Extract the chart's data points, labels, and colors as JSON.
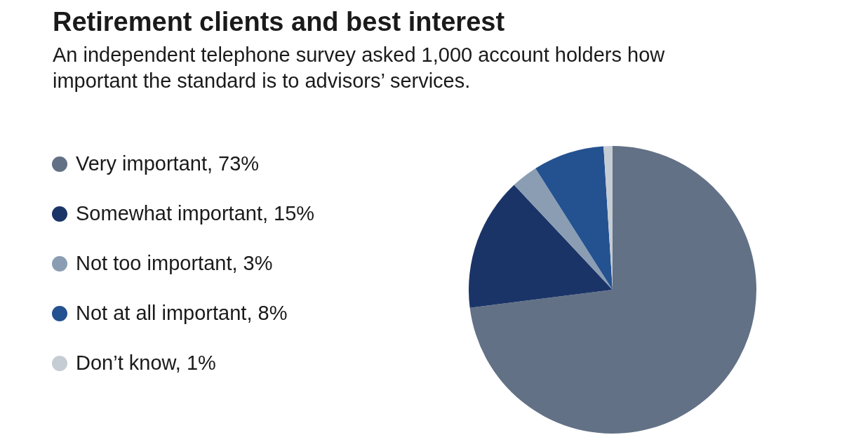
{
  "chart_data": {
    "type": "pie",
    "title": "Retirement clients and best interest",
    "subtitle": "An independent telephone survey asked 1,000 account holders how important the standard is to advisors’ services.",
    "categories": [
      "Very important, 73%",
      "Somewhat important, 15%",
      "Not too important, 3%",
      "Not at all important, 8%",
      "Don’t know, 1%"
    ],
    "values": [
      73,
      15,
      3,
      8,
      1
    ],
    "colors": [
      "#637186",
      "#1b3468",
      "#8a9db3",
      "#245190",
      "#c5ccd4"
    ],
    "legend": "left"
  }
}
